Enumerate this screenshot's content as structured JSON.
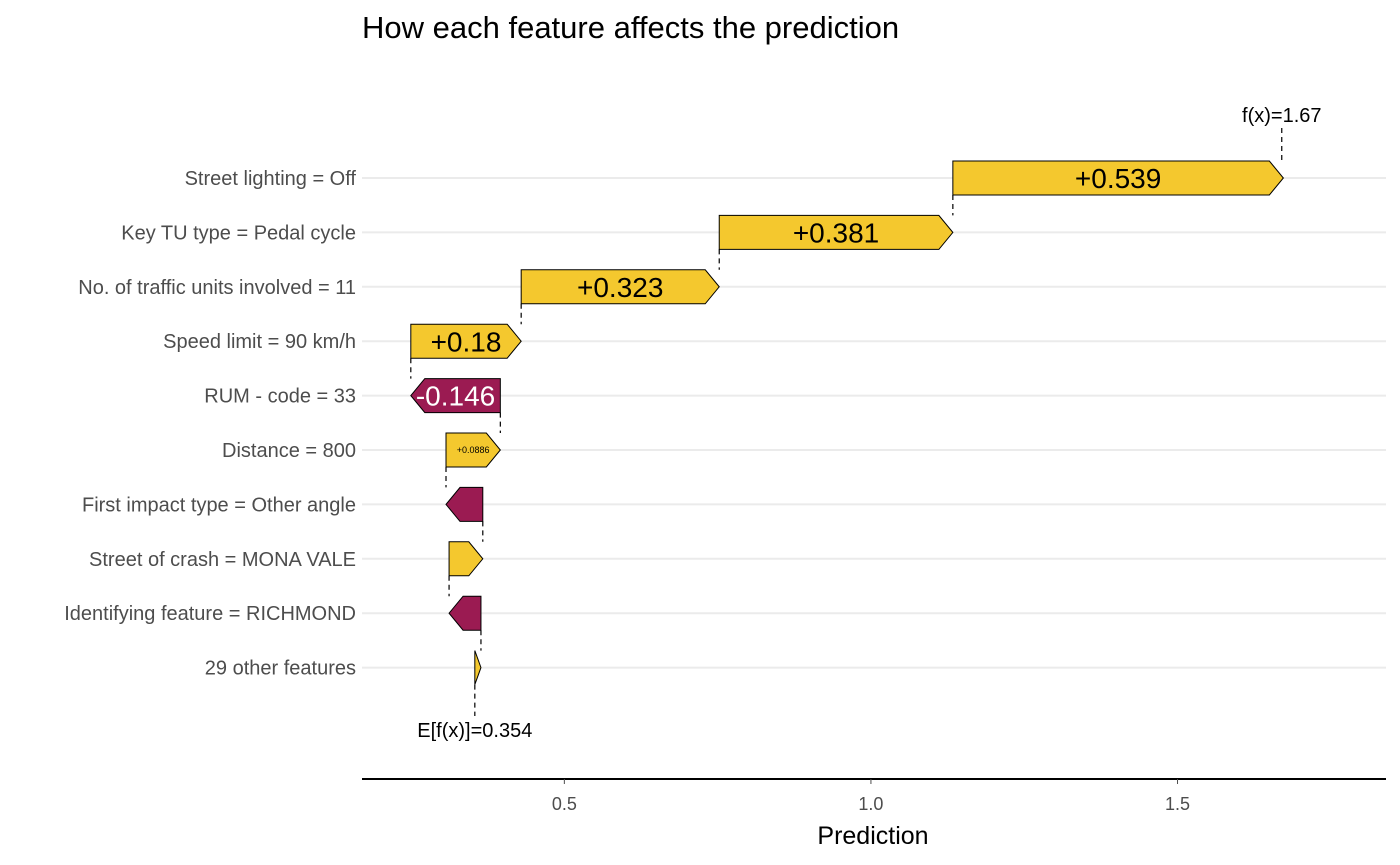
{
  "chart_data": {
    "type": "waterfall",
    "title": "How each feature affects the prediction",
    "xlabel": "Prediction",
    "xlim": [
      0.17,
      1.84
    ],
    "xticks": [
      0.5,
      1.0,
      1.5
    ],
    "xtick_labels": [
      "0.5",
      "1.0",
      "1.5"
    ],
    "grid": "horizontal",
    "base_value": 0.354,
    "base_label": "E[f(x)]=0.354",
    "final_value": 1.67,
    "final_label": "f(x)=1.67",
    "colors": {
      "positive": "#F4C82E",
      "negative": "#9B1B52"
    },
    "features": [
      {
        "name": "Street lighting = Off",
        "value": 0.539,
        "label": "+0.539"
      },
      {
        "name": "Key TU type = Pedal cycle",
        "value": 0.381,
        "label": "+0.381"
      },
      {
        "name": "No. of traffic units involved = 11",
        "value": 0.323,
        "label": "+0.323"
      },
      {
        "name": "Speed limit = 90 km/h",
        "value": 0.18,
        "label": "+0.18"
      },
      {
        "name": "RUM - code = 33",
        "value": -0.146,
        "label": "-0.146"
      },
      {
        "name": "Distance = 800",
        "value": 0.0886,
        "label": "+0.0886"
      },
      {
        "name": "First impact type = Other angle",
        "value": -0.06,
        "label": ""
      },
      {
        "name": "Street of crash = MONA VALE",
        "value": 0.055,
        "label": ""
      },
      {
        "name": "Identifying feature = RICHMOND",
        "value": -0.052,
        "label": ""
      },
      {
        "name": "29 other features",
        "value": 0.01,
        "label": ""
      }
    ]
  }
}
